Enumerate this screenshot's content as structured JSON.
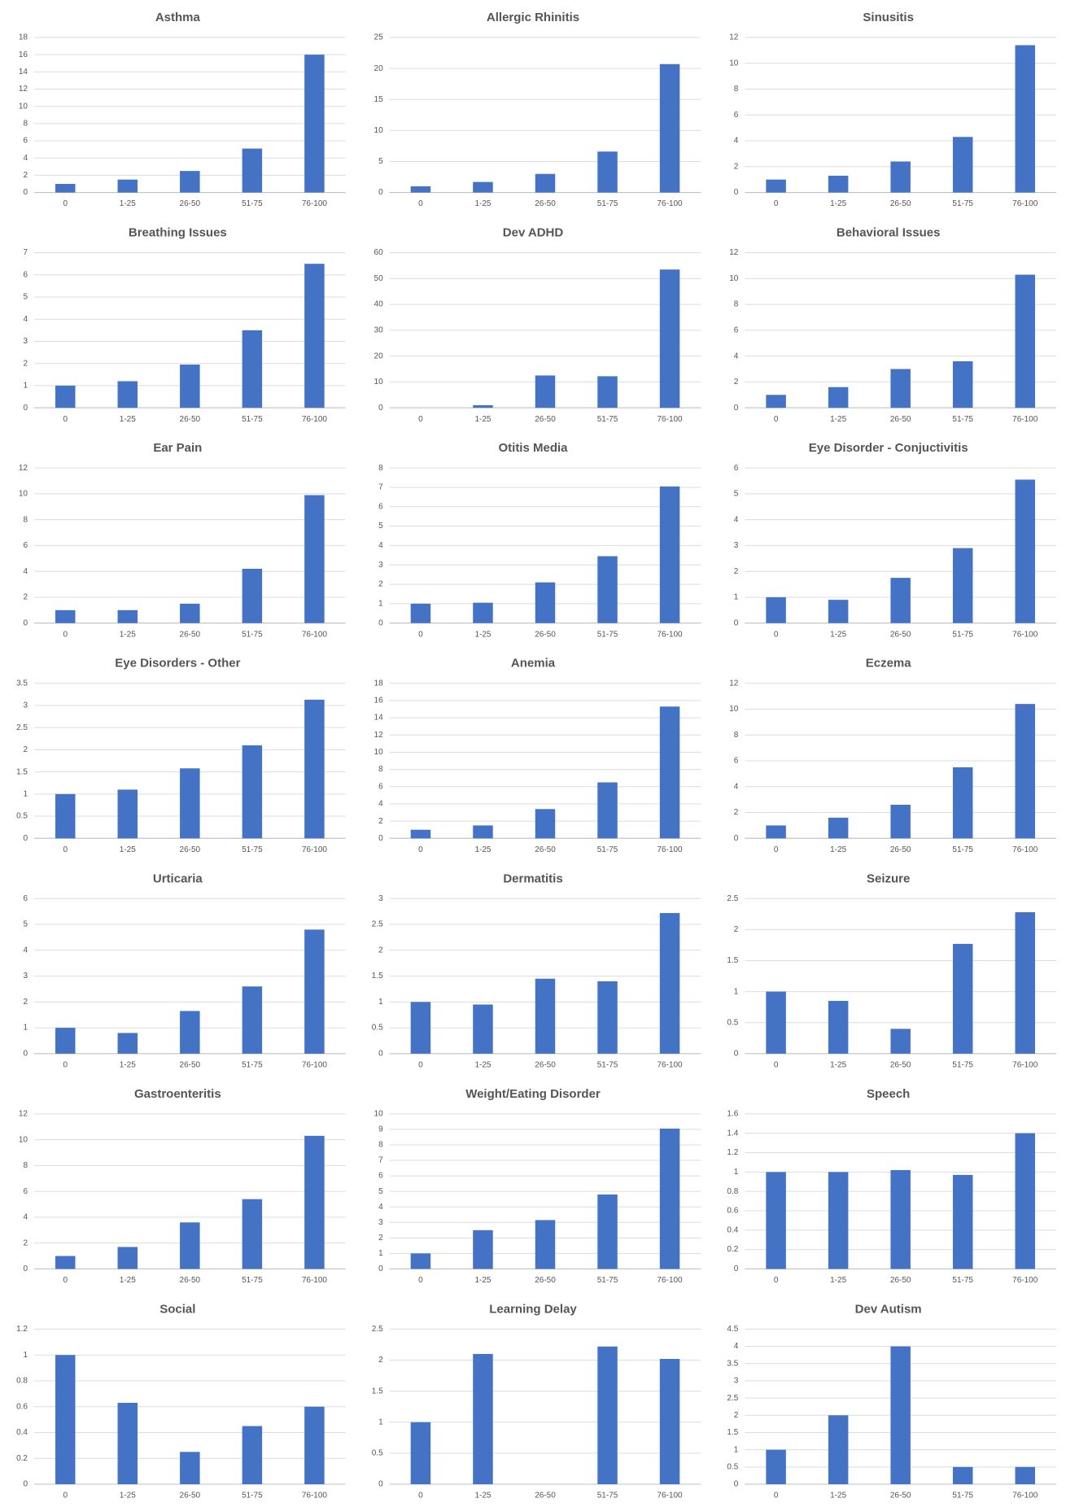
{
  "chart_data": [
    {
      "type": "bar",
      "title": "Asthma",
      "categories": [
        "0",
        "1-25",
        "26-50",
        "51-75",
        "76-100"
      ],
      "values": [
        1,
        1.5,
        2.5,
        5.1,
        16
      ],
      "color": "#4472c4",
      "ylim": [
        0,
        18
      ],
      "yticks": [
        0,
        2,
        4,
        6,
        8,
        10,
        12,
        14,
        16,
        18
      ],
      "grid": true
    },
    {
      "type": "bar",
      "title": "Allergic Rhinitis",
      "categories": [
        "0",
        "1-25",
        "26-50",
        "51-75",
        "76-100"
      ],
      "values": [
        1,
        1.7,
        3,
        6.6,
        20.7
      ],
      "color": "#4472c4",
      "ylim": [
        0,
        25
      ],
      "yticks": [
        0,
        5,
        10,
        15,
        20,
        25
      ],
      "grid": true
    },
    {
      "type": "bar",
      "title": "Sinusitis",
      "categories": [
        "0",
        "1-25",
        "26-50",
        "51-75",
        "76-100"
      ],
      "values": [
        1,
        1.3,
        2.4,
        4.3,
        11.4
      ],
      "color": "#4472c4",
      "ylim": [
        0,
        12
      ],
      "yticks": [
        0,
        2,
        4,
        6,
        8,
        10,
        12
      ],
      "grid": true
    },
    {
      "type": "bar",
      "title": "Breathing Issues",
      "categories": [
        "0",
        "1-25",
        "26-50",
        "51-75",
        "76-100"
      ],
      "values": [
        1,
        1.2,
        1.95,
        3.5,
        6.5
      ],
      "color": "#4472c4",
      "ylim": [
        0,
        7
      ],
      "yticks": [
        0,
        1,
        2,
        3,
        4,
        5,
        6,
        7
      ],
      "grid": true
    },
    {
      "type": "bar",
      "title": "Dev ADHD",
      "categories": [
        "0",
        "1-25",
        "26-50",
        "51-75",
        "76-100"
      ],
      "values": [
        0,
        1,
        12.5,
        12.2,
        53.5
      ],
      "color": "#4472c4",
      "ylim": [
        0,
        60
      ],
      "yticks": [
        0,
        10,
        20,
        30,
        40,
        50,
        60
      ],
      "grid": true
    },
    {
      "type": "bar",
      "title": "Behavioral Issues",
      "categories": [
        "0",
        "1-25",
        "26-50",
        "51-75",
        "76-100"
      ],
      "values": [
        1,
        1.6,
        3,
        3.6,
        10.3
      ],
      "color": "#4472c4",
      "ylim": [
        0,
        12
      ],
      "yticks": [
        0,
        2,
        4,
        6,
        8,
        10,
        12
      ],
      "grid": true
    },
    {
      "type": "bar",
      "title": "Ear Pain",
      "categories": [
        "0",
        "1-25",
        "26-50",
        "51-75",
        "76-100"
      ],
      "values": [
        1,
        1,
        1.5,
        4.2,
        9.9
      ],
      "color": "#4472c4",
      "ylim": [
        0,
        12
      ],
      "yticks": [
        0,
        2,
        4,
        6,
        8,
        10,
        12
      ],
      "grid": true
    },
    {
      "type": "bar",
      "title": "Otitis Media",
      "categories": [
        "0",
        "1-25",
        "26-50",
        "51-75",
        "76-100"
      ],
      "values": [
        1,
        1.05,
        2.1,
        3.45,
        7.05
      ],
      "color": "#4472c4",
      "ylim": [
        0,
        8
      ],
      "yticks": [
        0,
        1,
        2,
        3,
        4,
        5,
        6,
        7,
        8
      ],
      "grid": true
    },
    {
      "type": "bar",
      "title": "Eye Disorder - Conjuctivitis",
      "categories": [
        "0",
        "1-25",
        "26-50",
        "51-75",
        "76-100"
      ],
      "values": [
        1,
        0.9,
        1.75,
        2.9,
        5.55
      ],
      "color": "#4472c4",
      "ylim": [
        0,
        6
      ],
      "yticks": [
        0,
        1,
        2,
        3,
        4,
        5,
        6
      ],
      "grid": true
    },
    {
      "type": "bar",
      "title": "Eye Disorders - Other",
      "categories": [
        "0",
        "1-25",
        "26-50",
        "51-75",
        "76-100"
      ],
      "values": [
        1,
        1.1,
        1.58,
        2.1,
        3.13
      ],
      "color": "#4472c4",
      "ylim": [
        0,
        3.5
      ],
      "yticks": [
        0,
        0.5,
        1,
        1.5,
        2,
        2.5,
        3,
        3.5
      ],
      "grid": true
    },
    {
      "type": "bar",
      "title": "Anemia",
      "categories": [
        "0",
        "1-25",
        "26-50",
        "51-75",
        "76-100"
      ],
      "values": [
        1,
        1.5,
        3.4,
        6.5,
        15.3
      ],
      "color": "#4472c4",
      "ylim": [
        0,
        18
      ],
      "yticks": [
        0,
        2,
        4,
        6,
        8,
        10,
        12,
        14,
        16,
        18
      ],
      "grid": true
    },
    {
      "type": "bar",
      "title": "Eczema",
      "categories": [
        "0",
        "1-25",
        "26-50",
        "51-75",
        "76-100"
      ],
      "values": [
        1,
        1.6,
        2.6,
        5.5,
        10.4
      ],
      "color": "#4472c4",
      "ylim": [
        0,
        12
      ],
      "yticks": [
        0,
        2,
        4,
        6,
        8,
        10,
        12
      ],
      "grid": true
    },
    {
      "type": "bar",
      "title": "Urticaria",
      "categories": [
        "0",
        "1-25",
        "26-50",
        "51-75",
        "76-100"
      ],
      "values": [
        1,
        0.8,
        1.65,
        2.6,
        4.8
      ],
      "color": "#4472c4",
      "ylim": [
        0,
        6
      ],
      "yticks": [
        0,
        1,
        2,
        3,
        4,
        5,
        6
      ],
      "grid": true
    },
    {
      "type": "bar",
      "title": "Dermatitis",
      "categories": [
        "0",
        "1-25",
        "26-50",
        "51-75",
        "76-100"
      ],
      "values": [
        1,
        0.95,
        1.45,
        1.4,
        2.72
      ],
      "color": "#4472c4",
      "ylim": [
        0,
        3
      ],
      "yticks": [
        0,
        0.5,
        1,
        1.5,
        2,
        2.5,
        3
      ],
      "grid": true
    },
    {
      "type": "bar",
      "title": "Seizure",
      "categories": [
        "0",
        "1-25",
        "26-50",
        "51-75",
        "76-100"
      ],
      "values": [
        1,
        0.85,
        0.4,
        1.77,
        2.28
      ],
      "color": "#4472c4",
      "ylim": [
        0,
        2.5
      ],
      "yticks": [
        0,
        0.5,
        1,
        1.5,
        2,
        2.5
      ],
      "grid": true
    },
    {
      "type": "bar",
      "title": "Gastroenteritis",
      "categories": [
        "0",
        "1-25",
        "26-50",
        "51-75",
        "76-100"
      ],
      "values": [
        1,
        1.7,
        3.6,
        5.4,
        10.3
      ],
      "color": "#4472c4",
      "ylim": [
        0,
        12
      ],
      "yticks": [
        0,
        2,
        4,
        6,
        8,
        10,
        12
      ],
      "grid": true
    },
    {
      "type": "bar",
      "title": "Weight/Eating Disorder",
      "categories": [
        "0",
        "1-25",
        "26-50",
        "51-75",
        "76-100"
      ],
      "values": [
        1,
        2.5,
        3.15,
        4.8,
        9.05
      ],
      "color": "#4472c4",
      "ylim": [
        0,
        10
      ],
      "yticks": [
        0,
        1,
        2,
        3,
        4,
        5,
        6,
        7,
        8,
        9,
        10
      ],
      "grid": true
    },
    {
      "type": "bar",
      "title": "Speech",
      "categories": [
        "0",
        "1-25",
        "26-50",
        "51-75",
        "76-100"
      ],
      "values": [
        1,
        1,
        1.02,
        0.97,
        1.4
      ],
      "color": "#4472c4",
      "ylim": [
        0,
        1.6
      ],
      "yticks": [
        0,
        0.2,
        0.4,
        0.6,
        0.8,
        1,
        1.2,
        1.4,
        1.6
      ],
      "grid": true
    },
    {
      "type": "bar",
      "title": "Social",
      "categories": [
        "0",
        "1-25",
        "26-50",
        "51-75",
        "76-100"
      ],
      "values": [
        1,
        0.63,
        0.25,
        0.45,
        0.6
      ],
      "color": "#4472c4",
      "ylim": [
        0,
        1.2
      ],
      "yticks": [
        0,
        0.2,
        0.4,
        0.6,
        0.8,
        1,
        1.2
      ],
      "grid": true
    },
    {
      "type": "bar",
      "title": "Learning Delay",
      "categories": [
        "0",
        "1-25",
        "26-50",
        "51-75",
        "76-100"
      ],
      "values": [
        1,
        2.1,
        0,
        2.22,
        2.02
      ],
      "color": "#4472c4",
      "ylim": [
        0,
        2.5
      ],
      "yticks": [
        0,
        0.5,
        1,
        1.5,
        2,
        2.5
      ],
      "grid": true
    },
    {
      "type": "bar",
      "title": "Dev Autism",
      "categories": [
        "0",
        "1-25",
        "26-50",
        "51-75",
        "76-100"
      ],
      "values": [
        1,
        2,
        4,
        0.5,
        0.5
      ],
      "color": "#4472c4",
      "ylim": [
        0,
        4.5
      ],
      "yticks": [
        0,
        0.5,
        1,
        1.5,
        2,
        2.5,
        3,
        3.5,
        4,
        4.5
      ],
      "grid": true
    }
  ]
}
